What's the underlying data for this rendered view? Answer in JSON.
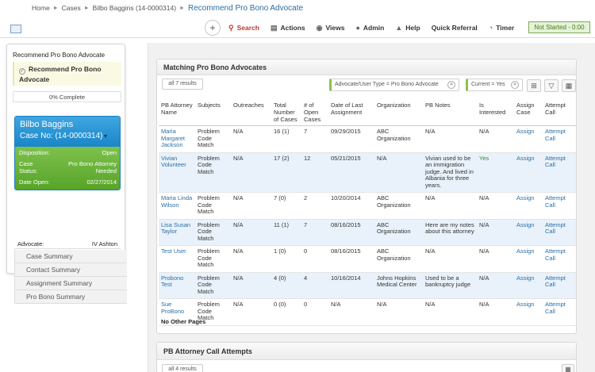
{
  "breadcrumb": {
    "items": [
      "Home",
      "Cases",
      "Bilbo Baggins (14-0000314)"
    ],
    "current": "Recommend Pro Bono Advocate"
  },
  "toolbar": {
    "items": [
      {
        "label": "Search",
        "icon": "search-icon"
      },
      {
        "label": "Actions",
        "icon": "actions-icon"
      },
      {
        "label": "Views",
        "icon": "eye-icon"
      },
      {
        "label": "Admin",
        "icon": "admin-icon"
      },
      {
        "label": "Help",
        "icon": "help-icon"
      },
      {
        "label": "Quick Referral",
        "icon": ""
      },
      {
        "label": "Timer",
        "icon": "timer-icon"
      }
    ],
    "status": "Not Started - 0:00"
  },
  "left_panel": {
    "title": "Recommend Pro Bono Advocate",
    "task_label": "Recommend Pro Bono Advocate",
    "progress": "0% Complete",
    "case": {
      "name": "Bilbo Baggins",
      "case_no": "Case No: (14-0000314)",
      "disposition_label": "Disposition:",
      "disposition_value": "Open",
      "status_label": "Case Status:",
      "status_value": "Pro Bono Attorney Needed",
      "date_label": "Date Open:",
      "date_value": "02/27/2014"
    },
    "advocate_label": "Advocate:",
    "advocate_value": "IV Ashton",
    "menu": [
      "Case Summary",
      "Contact Summary",
      "Assignment Summary",
      "Pro Bono Summary"
    ]
  },
  "matching": {
    "title": "Matching Pro Bono Advocates",
    "results": "all 7 results",
    "filters": [
      "Advocate/User Type = Pro Bono Advocate",
      "Current = Yes"
    ],
    "columns": [
      "PB Attorney Name",
      "Subjects",
      "Outreaches",
      "Total Number of Cases",
      "# of Open Cases",
      "Date of Last Assignment",
      "Organization",
      "PB Notes",
      "Is Interested",
      "Assign Case",
      "Attempt Call"
    ],
    "rows": [
      {
        "name": "Maria Margaret Jackson",
        "subjects": "Problem Code Match",
        "outreaches": "N/A",
        "total": "16 (1)",
        "open": "7",
        "date": "09/29/2015",
        "org": "ABC Organization",
        "notes": "N/A",
        "interested": "N/A",
        "assign": "Assign",
        "call": "Attempt Call"
      },
      {
        "name": "Vivian Volunteer",
        "subjects": "Problem Code Match",
        "outreaches": "N/A",
        "total": "17 (2)",
        "open": "12",
        "date": "05/21/2015",
        "org": "N/A",
        "notes": "Vivian used to be an immigration judge. And lived in Albania for three years.",
        "interested": "Yes",
        "assign": "Assign",
        "call": "Attempt Call"
      },
      {
        "name": "Maria Linda Wilson",
        "subjects": "Problem Code Match",
        "outreaches": "N/A",
        "total": "7 (0)",
        "open": "2",
        "date": "10/20/2014",
        "org": "ABC Organization",
        "notes": "N/A",
        "interested": "N/A",
        "assign": "Assign",
        "call": "Attempt Call"
      },
      {
        "name": "Lisa Susan Taylor",
        "subjects": "Problem Code Match",
        "outreaches": "N/A",
        "total": "11 (1)",
        "open": "7",
        "date": "08/16/2015",
        "org": "ABC Organization",
        "notes": "Here are my notes about this attorney",
        "interested": "N/A",
        "assign": "Assign",
        "call": "Attempt Call"
      },
      {
        "name": "Test User",
        "subjects": "Problem Code Match",
        "outreaches": "N/A",
        "total": "1 (0)",
        "open": "0",
        "date": "08/16/2015",
        "org": "ABC Organization",
        "notes": "N/A",
        "interested": "N/A",
        "assign": "Assign",
        "call": "Attempt Call"
      },
      {
        "name": "Probono Test",
        "subjects": "Problem Code Match",
        "outreaches": "N/A",
        "total": "4 (0)",
        "open": "4",
        "date": "10/16/2014",
        "org": "Johns Hopkins Medical Center",
        "notes": "Used to be a bankruptcy judge",
        "interested": "N/A",
        "assign": "Assign",
        "call": "Attempt Call"
      },
      {
        "name": "Sue ProBono",
        "subjects": "Problem Code Match",
        "outreaches": "N/A",
        "total": "0 (0)",
        "open": "0",
        "date": "N/A",
        "org": "N/A",
        "notes": "N/A",
        "interested": "N/A",
        "assign": "Assign",
        "call": "Attempt Call"
      }
    ],
    "footer": "No Other Pages"
  },
  "call_attempts": {
    "title": "PB Attorney Call Attempts",
    "results": "all 4 results"
  }
}
